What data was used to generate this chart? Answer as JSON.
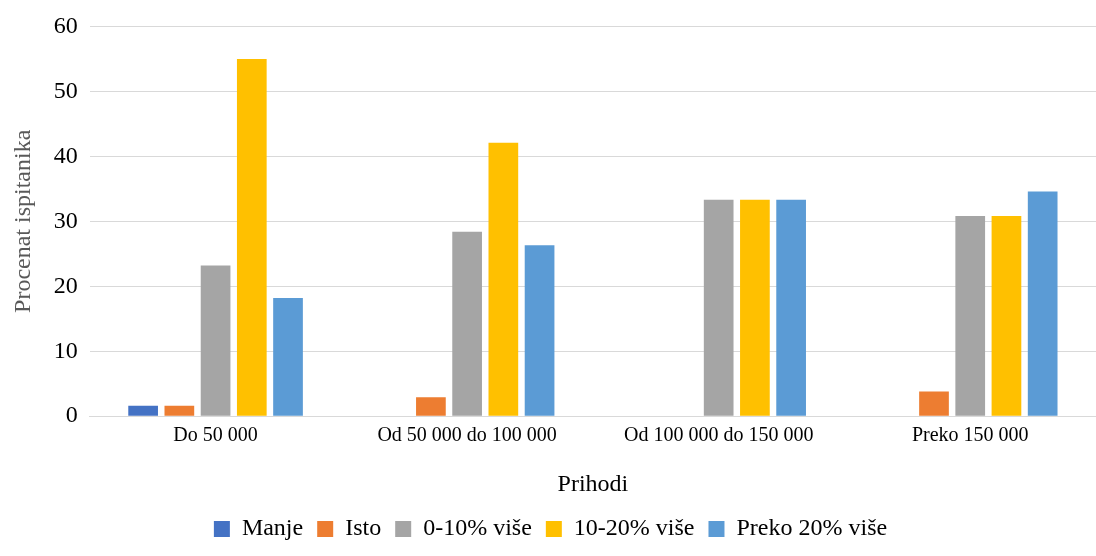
{
  "chart_data": {
    "type": "bar",
    "xlabel": "Prihodi",
    "ylabel": "Procenat ispitanika",
    "categories": [
      "Do 50 000",
      "Od 50 000 do 100 000",
      "Od 100 000 do 150 000",
      "Preko 150 000"
    ],
    "series": [
      {
        "name": "Manje",
        "color": "#4472c4",
        "values": [
          1.6,
          0,
          0,
          0
        ]
      },
      {
        "name": "Isto",
        "color": "#ed7d31",
        "values": [
          1.6,
          2.9,
          0,
          3.8
        ]
      },
      {
        "name": "0-10% više",
        "color": "#a5a5a5",
        "values": [
          23.2,
          28.4,
          33.3,
          30.8
        ]
      },
      {
        "name": "10-20% više",
        "color": "#ffc000",
        "values": [
          55,
          42.1,
          33.3,
          30.8
        ]
      },
      {
        "name": "Preko 20% više",
        "color": "#5b9bd5",
        "values": [
          18.2,
          26.3,
          33.3,
          34.6
        ]
      }
    ],
    "ylim": [
      0,
      60
    ],
    "yticks": [
      0,
      10,
      20,
      30,
      40,
      50,
      60
    ],
    "grid": "y",
    "legend": "bottom"
  }
}
